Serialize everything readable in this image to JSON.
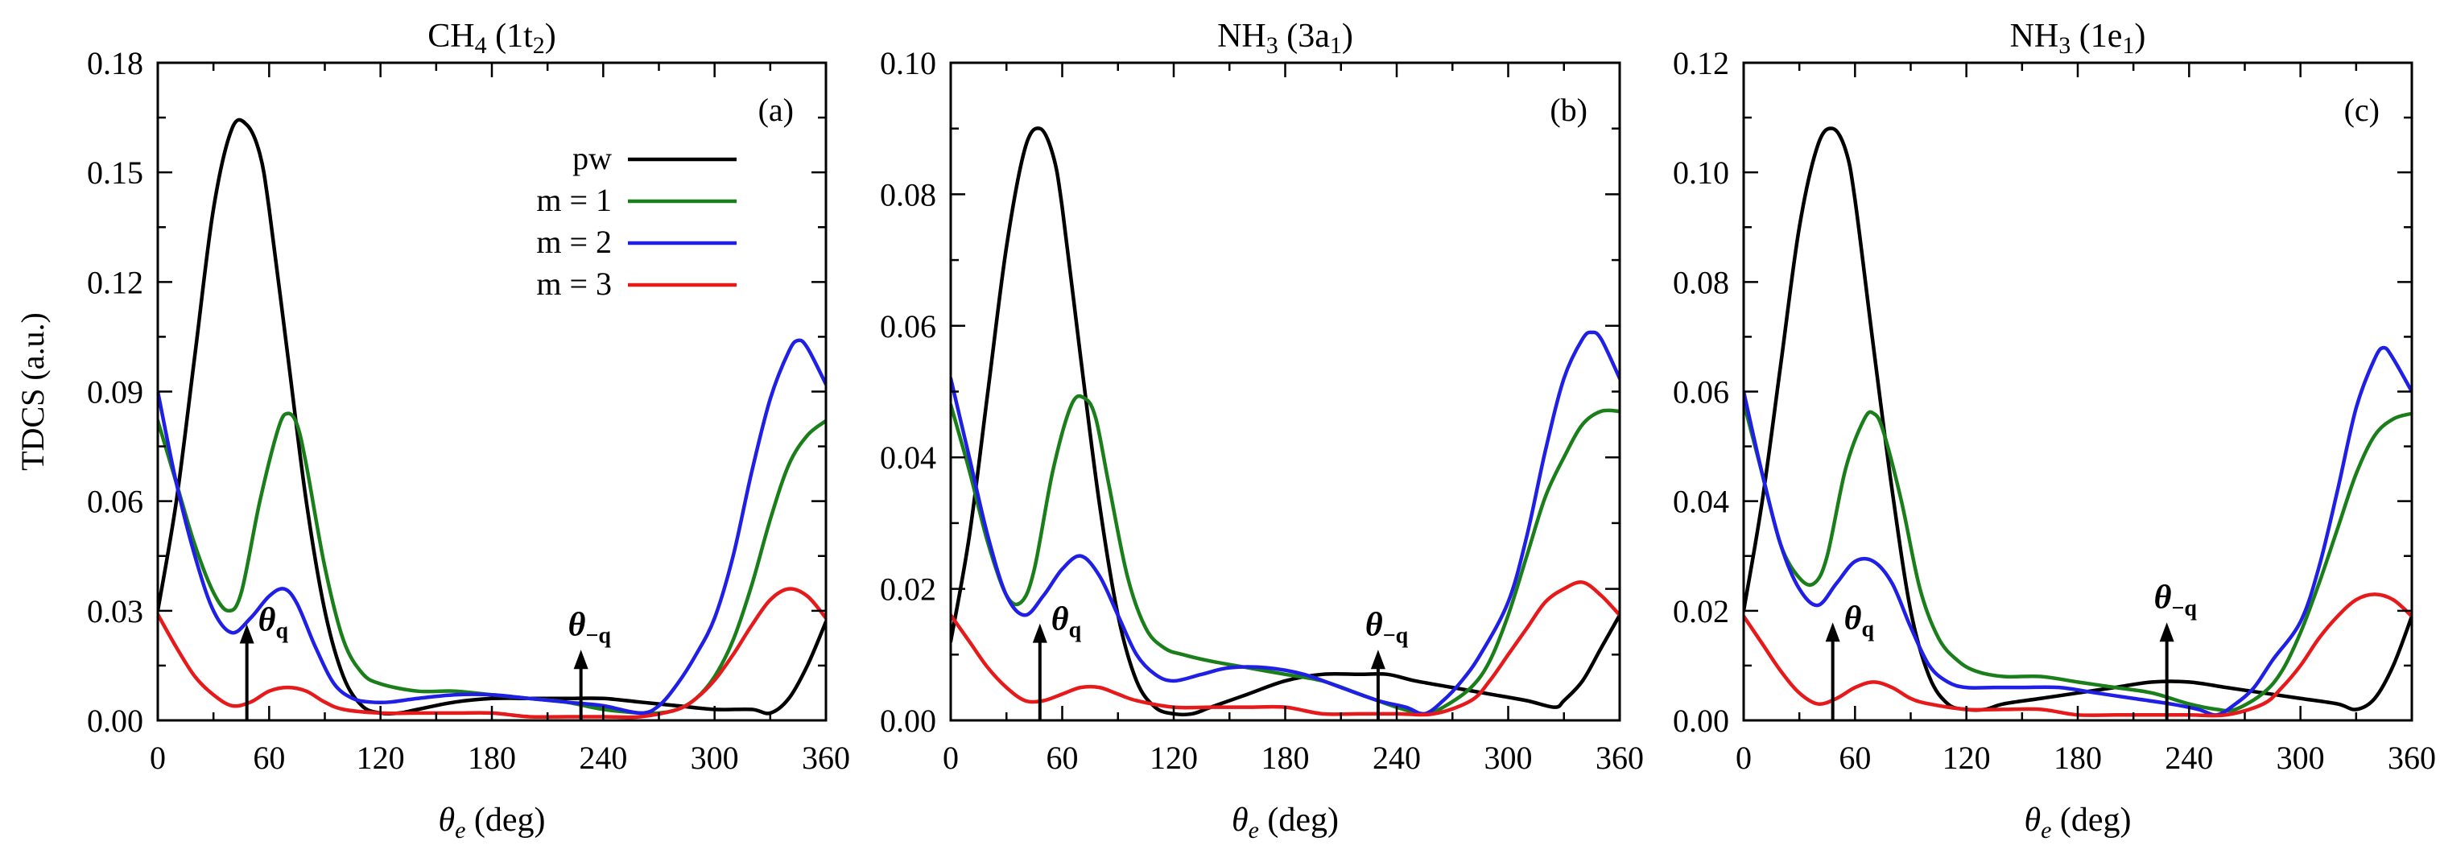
{
  "chart_data": [
    {
      "type": "line",
      "title": "CH4 (1t2)",
      "title_main": "CH",
      "title_sub1": "4",
      "title_mid": " (1t",
      "title_sub2": "2",
      "title_end": ")",
      "panel_label": "(a)",
      "xlabel": "θe (deg)",
      "xlabel_theta": "θ",
      "xlabel_sub": "e",
      "xlabel_rest": " (deg)",
      "ylabel": "TDCS (a.u.)",
      "xlim": [
        0,
        360
      ],
      "ylim": [
        0,
        0.18
      ],
      "xticks": [
        0,
        60,
        120,
        180,
        240,
        300,
        360
      ],
      "xtick_labels": [
        "0",
        "60",
        "120",
        "180",
        "240",
        "300",
        "360"
      ],
      "yticks": [
        0,
        0.03,
        0.06,
        0.09,
        0.12,
        0.15,
        0.18
      ],
      "ytick_labels": [
        "0.00",
        "0.03",
        "0.06",
        "0.09",
        "0.12",
        "0.15",
        "0.18"
      ],
      "show_legend": true,
      "legend_position": "top-center",
      "annotations": [
        {
          "label": "θq",
          "label_main": "θ",
          "label_sub": "q",
          "x": 48,
          "y_from": 0.0,
          "y_to": 0.025
        },
        {
          "label": "θ−q",
          "label_main": "θ",
          "label_sub": "−q",
          "x": 228,
          "y_from": 0.0,
          "y_to": 0.018
        }
      ],
      "series": [
        {
          "name": "pw",
          "color": "#000000",
          "x": [
            0,
            10,
            20,
            30,
            40,
            48,
            55,
            60,
            70,
            80,
            90,
            100,
            110,
            120,
            130,
            140,
            160,
            180,
            200,
            220,
            240,
            260,
            280,
            300,
            320,
            330,
            340,
            350,
            360
          ],
          "y": [
            0.03,
            0.06,
            0.1,
            0.14,
            0.162,
            0.163,
            0.155,
            0.14,
            0.1,
            0.06,
            0.03,
            0.012,
            0.004,
            0.002,
            0.002,
            0.003,
            0.005,
            0.006,
            0.006,
            0.006,
            0.006,
            0.005,
            0.004,
            0.003,
            0.003,
            0.002,
            0.006,
            0.015,
            0.027
          ]
        },
        {
          "name": "m = 1",
          "color": "#1a7f1a",
          "x": [
            0,
            10,
            20,
            30,
            38,
            45,
            55,
            65,
            70,
            75,
            80,
            90,
            100,
            110,
            120,
            140,
            160,
            180,
            200,
            220,
            240,
            260,
            270,
            280,
            290,
            300,
            310,
            320,
            330,
            340,
            350,
            360
          ],
          "y": [
            0.082,
            0.065,
            0.048,
            0.035,
            0.03,
            0.035,
            0.06,
            0.08,
            0.084,
            0.081,
            0.07,
            0.042,
            0.022,
            0.013,
            0.01,
            0.008,
            0.008,
            0.007,
            0.006,
            0.005,
            0.003,
            0.002,
            0.002,
            0.003,
            0.006,
            0.012,
            0.022,
            0.037,
            0.055,
            0.07,
            0.078,
            0.082
          ]
        },
        {
          "name": "m = 2",
          "color": "#1f1fe6",
          "x": [
            0,
            10,
            20,
            30,
            40,
            50,
            60,
            68,
            75,
            85,
            95,
            105,
            115,
            125,
            140,
            160,
            180,
            200,
            220,
            240,
            260,
            270,
            280,
            290,
            300,
            310,
            320,
            330,
            340,
            345,
            350,
            360
          ],
          "y": [
            0.09,
            0.065,
            0.045,
            0.03,
            0.024,
            0.028,
            0.034,
            0.036,
            0.032,
            0.02,
            0.01,
            0.006,
            0.005,
            0.005,
            0.006,
            0.007,
            0.007,
            0.006,
            0.005,
            0.004,
            0.002,
            0.004,
            0.01,
            0.018,
            0.028,
            0.045,
            0.068,
            0.088,
            0.101,
            0.104,
            0.102,
            0.092
          ]
        },
        {
          "name": "m = 3",
          "color": "#e61a1a",
          "x": [
            0,
            10,
            20,
            30,
            40,
            50,
            60,
            70,
            80,
            90,
            100,
            120,
            140,
            160,
            180,
            200,
            220,
            240,
            260,
            280,
            290,
            300,
            310,
            320,
            330,
            340,
            350,
            360
          ],
          "y": [
            0.029,
            0.02,
            0.012,
            0.007,
            0.004,
            0.005,
            0.008,
            0.009,
            0.008,
            0.005,
            0.003,
            0.002,
            0.002,
            0.002,
            0.002,
            0.001,
            0.001,
            0.001,
            0.001,
            0.003,
            0.006,
            0.011,
            0.018,
            0.026,
            0.033,
            0.036,
            0.034,
            0.028
          ]
        }
      ]
    },
    {
      "type": "line",
      "title": "NH3 (3a1)",
      "title_main": "NH",
      "title_sub1": "3",
      "title_mid": " (3a",
      "title_sub2": "1",
      "title_end": ")",
      "panel_label": "(b)",
      "xlabel": "θe (deg)",
      "xlabel_theta": "θ",
      "xlabel_sub": "e",
      "xlabel_rest": " (deg)",
      "ylabel": "",
      "xlim": [
        0,
        360
      ],
      "ylim": [
        0,
        0.1
      ],
      "xticks": [
        0,
        60,
        120,
        180,
        240,
        300,
        360
      ],
      "xtick_labels": [
        "0",
        "60",
        "120",
        "180",
        "240",
        "300",
        "360"
      ],
      "yticks": [
        0,
        0.02,
        0.04,
        0.06,
        0.08,
        0.1
      ],
      "ytick_labels": [
        "0.00",
        "0.02",
        "0.04",
        "0.06",
        "0.08",
        "0.10"
      ],
      "show_legend": false,
      "annotations": [
        {
          "label": "θq",
          "label_main": "θ",
          "label_sub": "q",
          "x": 48,
          "y_from": 0.0,
          "y_to": 0.014
        },
        {
          "label": "θ−q",
          "label_main": "θ",
          "label_sub": "−q",
          "x": 230,
          "y_from": 0.0,
          "y_to": 0.01
        }
      ],
      "series": [
        {
          "name": "pw",
          "color": "#000000",
          "x": [
            0,
            10,
            20,
            30,
            40,
            48,
            55,
            60,
            70,
            80,
            90,
            100,
            110,
            120,
            130,
            140,
            160,
            180,
            200,
            220,
            235,
            250,
            270,
            290,
            310,
            325,
            330,
            340,
            350,
            360
          ],
          "y": [
            0.012,
            0.028,
            0.05,
            0.072,
            0.087,
            0.09,
            0.086,
            0.078,
            0.055,
            0.033,
            0.016,
            0.006,
            0.002,
            0.001,
            0.001,
            0.002,
            0.004,
            0.006,
            0.007,
            0.007,
            0.007,
            0.006,
            0.005,
            0.004,
            0.003,
            0.002,
            0.003,
            0.006,
            0.011,
            0.016
          ]
        },
        {
          "name": "m = 1",
          "color": "#1a7f1a",
          "x": [
            0,
            10,
            20,
            30,
            38,
            45,
            55,
            65,
            72,
            78,
            85,
            95,
            105,
            115,
            125,
            140,
            160,
            180,
            200,
            220,
            240,
            255,
            265,
            280,
            290,
            300,
            310,
            320,
            330,
            340,
            350,
            360
          ],
          "y": [
            0.048,
            0.038,
            0.027,
            0.019,
            0.018,
            0.023,
            0.038,
            0.048,
            0.049,
            0.046,
            0.036,
            0.022,
            0.014,
            0.011,
            0.01,
            0.009,
            0.008,
            0.007,
            0.006,
            0.004,
            0.002,
            0.001,
            0.002,
            0.005,
            0.009,
            0.016,
            0.025,
            0.034,
            0.04,
            0.045,
            0.047,
            0.047
          ]
        },
        {
          "name": "m = 2",
          "color": "#1f1fe6",
          "x": [
            0,
            10,
            20,
            30,
            40,
            50,
            60,
            70,
            80,
            90,
            100,
            110,
            120,
            135,
            150,
            170,
            190,
            210,
            230,
            245,
            255,
            265,
            275,
            285,
            300,
            310,
            320,
            330,
            340,
            345,
            350,
            360
          ],
          "y": [
            0.052,
            0.04,
            0.028,
            0.019,
            0.016,
            0.019,
            0.023,
            0.025,
            0.022,
            0.016,
            0.01,
            0.007,
            0.006,
            0.007,
            0.008,
            0.008,
            0.007,
            0.005,
            0.003,
            0.002,
            0.001,
            0.003,
            0.006,
            0.01,
            0.018,
            0.028,
            0.041,
            0.052,
            0.058,
            0.059,
            0.058,
            0.052
          ]
        },
        {
          "name": "m = 3",
          "color": "#e61a1a",
          "x": [
            0,
            10,
            20,
            30,
            40,
            50,
            60,
            70,
            80,
            90,
            100,
            120,
            140,
            160,
            180,
            200,
            220,
            240,
            260,
            280,
            290,
            300,
            310,
            320,
            330,
            340,
            350,
            360
          ],
          "y": [
            0.016,
            0.012,
            0.008,
            0.005,
            0.003,
            0.003,
            0.004,
            0.005,
            0.005,
            0.004,
            0.003,
            0.002,
            0.002,
            0.002,
            0.002,
            0.001,
            0.001,
            0.001,
            0.001,
            0.003,
            0.006,
            0.01,
            0.014,
            0.018,
            0.02,
            0.021,
            0.019,
            0.016
          ]
        }
      ]
    },
    {
      "type": "line",
      "title": "NH3 (1e1)",
      "title_main": "NH",
      "title_sub1": "3",
      "title_mid": " (1e",
      "title_sub2": "1",
      "title_end": ")",
      "panel_label": "(c)",
      "xlabel": "θe (deg)",
      "xlabel_theta": "θ",
      "xlabel_sub": "e",
      "xlabel_rest": " (deg)",
      "ylabel": "",
      "xlim": [
        0,
        360
      ],
      "ylim": [
        0,
        0.12
      ],
      "xticks": [
        0,
        60,
        120,
        180,
        240,
        300,
        360
      ],
      "xtick_labels": [
        "0",
        "60",
        "120",
        "180",
        "240",
        "300",
        "360"
      ],
      "yticks": [
        0,
        0.02,
        0.04,
        0.06,
        0.08,
        0.1,
        0.12
      ],
      "ytick_labels": [
        "0.00",
        "0.02",
        "0.04",
        "0.06",
        "0.08",
        "0.10",
        "0.12"
      ],
      "show_legend": false,
      "annotations": [
        {
          "label": "θq",
          "label_main": "θ",
          "label_sub": "q",
          "x": 48,
          "y_from": 0.0,
          "y_to": 0.017
        },
        {
          "label": "θ−q",
          "label_main": "θ",
          "label_sub": "−q",
          "x": 228,
          "y_from": 0.0,
          "y_to": 0.017
        }
      ],
      "series": [
        {
          "name": "pw",
          "color": "#000000",
          "x": [
            0,
            10,
            20,
            30,
            40,
            48,
            55,
            60,
            70,
            80,
            90,
            100,
            110,
            120,
            130,
            140,
            160,
            180,
            200,
            220,
            240,
            260,
            280,
            300,
            320,
            330,
            340,
            350,
            360
          ],
          "y": [
            0.02,
            0.04,
            0.065,
            0.09,
            0.105,
            0.108,
            0.104,
            0.095,
            0.068,
            0.042,
            0.02,
            0.008,
            0.003,
            0.002,
            0.002,
            0.003,
            0.004,
            0.005,
            0.006,
            0.007,
            0.007,
            0.006,
            0.005,
            0.004,
            0.003,
            0.002,
            0.004,
            0.01,
            0.019
          ]
        },
        {
          "name": "m = 1",
          "color": "#1a7f1a",
          "x": [
            0,
            10,
            20,
            30,
            38,
            45,
            55,
            65,
            70,
            75,
            85,
            95,
            105,
            115,
            125,
            140,
            160,
            180,
            200,
            220,
            240,
            255,
            265,
            280,
            290,
            300,
            310,
            320,
            330,
            340,
            350,
            360
          ],
          "y": [
            0.058,
            0.045,
            0.032,
            0.026,
            0.025,
            0.03,
            0.046,
            0.055,
            0.056,
            0.053,
            0.04,
            0.024,
            0.015,
            0.011,
            0.009,
            0.008,
            0.008,
            0.007,
            0.006,
            0.005,
            0.003,
            0.002,
            0.002,
            0.005,
            0.009,
            0.016,
            0.025,
            0.035,
            0.045,
            0.052,
            0.055,
            0.056
          ]
        },
        {
          "name": "m = 2",
          "color": "#1f1fe6",
          "x": [
            0,
            10,
            20,
            30,
            40,
            50,
            60,
            70,
            80,
            90,
            100,
            110,
            120,
            135,
            150,
            170,
            190,
            210,
            230,
            245,
            255,
            265,
            275,
            285,
            300,
            310,
            320,
            330,
            340,
            345,
            350,
            360
          ],
          "y": [
            0.06,
            0.045,
            0.032,
            0.024,
            0.021,
            0.025,
            0.029,
            0.029,
            0.025,
            0.017,
            0.01,
            0.007,
            0.006,
            0.006,
            0.006,
            0.006,
            0.005,
            0.004,
            0.003,
            0.002,
            0.001,
            0.003,
            0.006,
            0.011,
            0.018,
            0.028,
            0.042,
            0.057,
            0.066,
            0.068,
            0.066,
            0.06
          ]
        },
        {
          "name": "m = 3",
          "color": "#e61a1a",
          "x": [
            0,
            10,
            20,
            30,
            40,
            50,
            60,
            70,
            80,
            90,
            100,
            120,
            140,
            160,
            180,
            200,
            220,
            240,
            260,
            280,
            290,
            300,
            310,
            320,
            330,
            340,
            350,
            360
          ],
          "y": [
            0.019,
            0.014,
            0.009,
            0.005,
            0.003,
            0.004,
            0.006,
            0.007,
            0.006,
            0.004,
            0.003,
            0.002,
            0.002,
            0.002,
            0.001,
            0.001,
            0.001,
            0.001,
            0.001,
            0.003,
            0.006,
            0.01,
            0.015,
            0.019,
            0.022,
            0.023,
            0.022,
            0.019
          ]
        }
      ]
    }
  ]
}
